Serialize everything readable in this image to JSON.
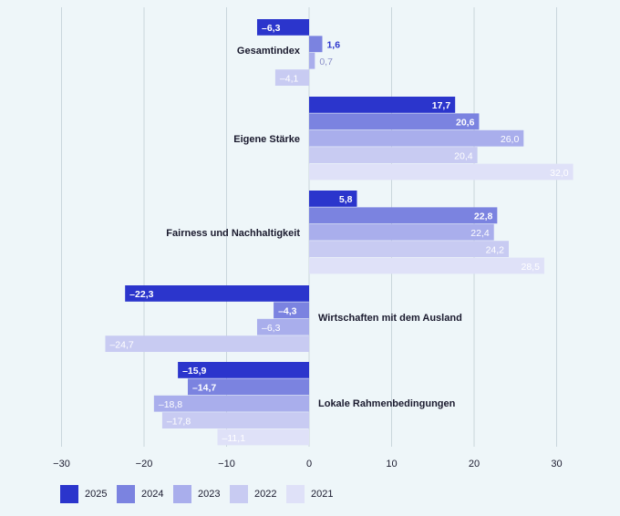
{
  "chart_data": {
    "type": "bar",
    "orientation": "horizontal",
    "categories": [
      "Gesamtindex",
      "Eigene Stärke",
      "Fairness und Nachhaltigkeit",
      "Wirtschaften mit dem Ausland",
      "Lokale Rahmenbedingungen"
    ],
    "series": [
      {
        "name": "2025",
        "color": "#2b35cc",
        "values": [
          -6.3,
          17.7,
          5.8,
          -22.3,
          -15.9
        ],
        "labels": [
          "–6,3",
          "17,7",
          "5,8",
          "–22,3",
          "–15,9"
        ]
      },
      {
        "name": "2024",
        "color": "#7b83e0",
        "values": [
          1.6,
          20.6,
          22.8,
          -4.3,
          -14.7
        ],
        "labels": [
          "1,6",
          "20,6",
          "22,8",
          "–4,3",
          "–14,7"
        ]
      },
      {
        "name": "2023",
        "color": "#a9aeec",
        "values": [
          0.7,
          26.0,
          22.4,
          -6.3,
          -18.8
        ],
        "labels": [
          "0,7",
          "26,0",
          "22,4",
          "–6,3",
          "–18,8"
        ]
      },
      {
        "name": "2022",
        "color": "#c8cbf2",
        "values": [
          -4.1,
          20.4,
          24.2,
          -24.7,
          -17.8
        ],
        "labels": [
          "–4,1",
          "20,4",
          "24,2",
          "–24,7",
          "–17,8"
        ]
      },
      {
        "name": "2021",
        "color": "#dfe1f8",
        "values": [
          null,
          32.0,
          28.5,
          null,
          -11.1
        ],
        "labels": [
          "",
          "32,0",
          "28,5",
          "",
          "–11,1"
        ]
      }
    ],
    "xlim": [
      -33,
      33
    ],
    "ticks": [
      -30,
      -20,
      -10,
      0,
      10,
      20,
      30
    ],
    "tick_labels": [
      "−30",
      "−20",
      "−10",
      "0",
      "10",
      "20",
      "30"
    ],
    "grid": true,
    "legend_position": "bottom-left"
  },
  "legend": {
    "items": [
      {
        "label": "2025",
        "color": "#2b35cc"
      },
      {
        "label": "2024",
        "color": "#7b83e0"
      },
      {
        "label": "2023",
        "color": "#a9aeec"
      },
      {
        "label": "2022",
        "color": "#c8cbf2"
      },
      {
        "label": "2021",
        "color": "#dfe1f8"
      }
    ]
  }
}
